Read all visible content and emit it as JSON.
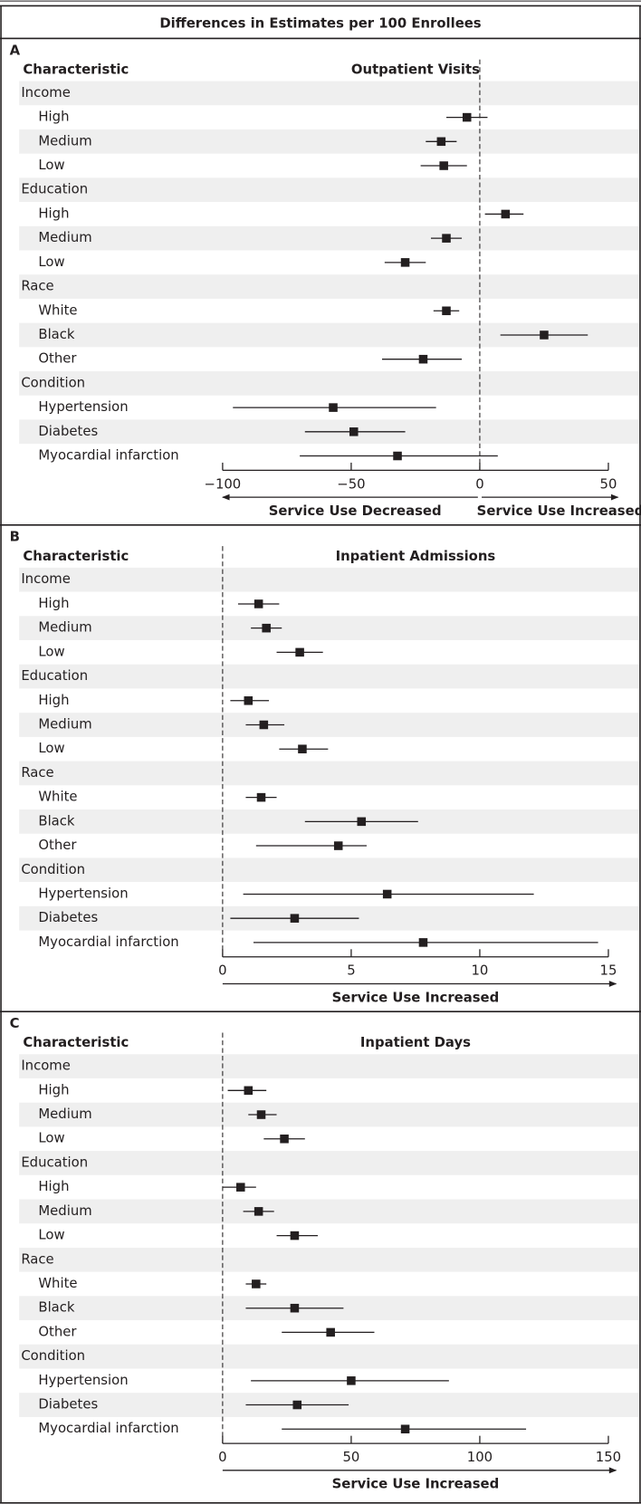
{
  "title": "Differences in Estimates per 100 Enrollees",
  "chart_data": [
    {
      "type": "forest",
      "panel": "A",
      "row_header": "Characteristic",
      "title": "Outpatient Visits",
      "color": "#231f20",
      "stripe_color": "#efefef",
      "reference_line": 0,
      "groups": [
        {
          "name": "Income",
          "categories": [
            "High",
            "Medium",
            "Low"
          ],
          "values": [
            -5,
            -15,
            -14
          ],
          "lower": [
            -13,
            -21,
            -23
          ],
          "upper": [
            3,
            -9,
            -5
          ]
        },
        {
          "name": "Education",
          "categories": [
            "High",
            "Medium",
            "Low"
          ],
          "values": [
            10,
            -13,
            -29
          ],
          "lower": [
            2,
            -19,
            -37
          ],
          "upper": [
            17,
            -7,
            -21
          ]
        },
        {
          "name": "Race",
          "categories": [
            "White",
            "Black",
            "Other"
          ],
          "values": [
            -13,
            25,
            -22
          ],
          "lower": [
            -18,
            8,
            -38
          ],
          "upper": [
            -8,
            42,
            -7
          ]
        },
        {
          "name": "Condition",
          "categories": [
            "Hypertension",
            "Diabetes",
            "Myocardial infarction"
          ],
          "values": [
            -57,
            -49,
            -32
          ],
          "lower": [
            -96,
            -68,
            -70
          ],
          "upper": [
            -17,
            -29,
            7
          ]
        }
      ],
      "xlim": [
        -100,
        50
      ],
      "xticks": [
        {
          "value": -100,
          "label": "−100"
        },
        {
          "value": -50,
          "label": "−50"
        },
        0,
        50
      ],
      "xlabels": [
        "Service Use Decreased",
        "Service Use Increased"
      ]
    },
    {
      "type": "forest",
      "panel": "B",
      "row_header": "Characteristic",
      "title": "Inpatient Admissions",
      "color": "#231f20",
      "stripe_color": "#efefef",
      "reference_line": 0,
      "groups": [
        {
          "name": "Income",
          "categories": [
            "High",
            "Medium",
            "Low"
          ],
          "values": [
            1.4,
            1.7,
            3.0
          ],
          "lower": [
            0.6,
            1.1,
            2.1
          ],
          "upper": [
            2.2,
            2.3,
            3.9
          ]
        },
        {
          "name": "Education",
          "categories": [
            "High",
            "Medium",
            "Low"
          ],
          "values": [
            1.0,
            1.6,
            3.1
          ],
          "lower": [
            0.3,
            0.9,
            2.2
          ],
          "upper": [
            1.8,
            2.4,
            4.1
          ]
        },
        {
          "name": "Race",
          "categories": [
            "White",
            "Black",
            "Other"
          ],
          "values": [
            1.5,
            5.4,
            4.5
          ],
          "lower": [
            0.9,
            3.2,
            1.3
          ],
          "upper": [
            2.1,
            7.6,
            5.6
          ]
        },
        {
          "name": "Condition",
          "categories": [
            "Hypertension",
            "Diabetes",
            "Myocardial infarction"
          ],
          "values": [
            6.4,
            2.8,
            7.8
          ],
          "lower": [
            0.8,
            0.3,
            1.2
          ],
          "upper": [
            12.1,
            5.3,
            14.6
          ]
        }
      ],
      "xlim": [
        0,
        15
      ],
      "xticks": [
        0,
        5,
        10,
        15
      ],
      "xlabels": [
        "Service Use Increased"
      ]
    },
    {
      "type": "forest",
      "panel": "C",
      "row_header": "Characteristic",
      "title": "Inpatient Days",
      "color": "#231f20",
      "stripe_color": "#efefef",
      "reference_line": 0,
      "groups": [
        {
          "name": "Income",
          "categories": [
            "High",
            "Medium",
            "Low"
          ],
          "values": [
            10,
            15,
            24
          ],
          "lower": [
            2,
            10,
            16
          ],
          "upper": [
            17,
            21,
            32
          ]
        },
        {
          "name": "Education",
          "categories": [
            "High",
            "Medium",
            "Low"
          ],
          "values": [
            7,
            14,
            28
          ],
          "lower": [
            0,
            8,
            21
          ],
          "upper": [
            13,
            20,
            37
          ]
        },
        {
          "name": "Race",
          "categories": [
            "White",
            "Black",
            "Other"
          ],
          "values": [
            13,
            28,
            42
          ],
          "lower": [
            9,
            9,
            23
          ],
          "upper": [
            17,
            47,
            59
          ]
        },
        {
          "name": "Condition",
          "categories": [
            "Hypertension",
            "Diabetes",
            "Myocardial infarction"
          ],
          "values": [
            50,
            29,
            71
          ],
          "lower": [
            11,
            9,
            23
          ],
          "upper": [
            88,
            49,
            118
          ]
        }
      ],
      "xlim": [
        0,
        150
      ],
      "xticks": [
        0,
        50,
        100,
        150
      ],
      "xlabels": [
        "Service Use Increased"
      ]
    }
  ]
}
